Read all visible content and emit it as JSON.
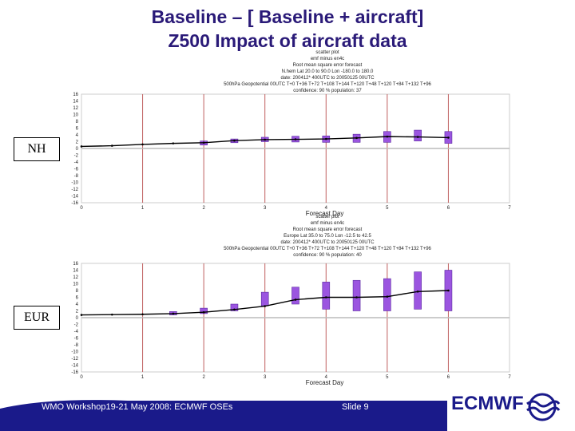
{
  "slide": {
    "title_line1": "Baseline – [ Baseline + aircraft]",
    "title_line2": "Z500 Impact of aircraft data",
    "footer_text": "WMO Workshop19-21 May 2008: ECMWF OSEs",
    "slide_label": "Slide 9",
    "logo_text": "ECMWF"
  },
  "colors": {
    "title": "#2a1a78",
    "box_fill": "#9b55e0",
    "box_stroke": "#5a2aa0",
    "line": "#000000",
    "vgrid": "#c06060",
    "footer_bar": "#1a1a8a"
  },
  "chart_data": [
    {
      "type": "box",
      "region_label": "NH",
      "header_lines": [
        "scatter plot",
        "emf minus en4c",
        "Root mean square error forecast",
        "N.hem Lat 20.0 to 90.0 Lon -180.0 to 180.0",
        "date: 200412* 400UTC to 20050125 00UTC",
        "500hPa Geopotential 00UTC T+0 T+36 T+72 T+108 T+144 T+120 T+48 T+120 T+84 T+132 T+96",
        "confidence: 90 % population: 37"
      ],
      "xlabel": "Forecast Day",
      "x_ticks": [
        0,
        1,
        2,
        3,
        4,
        5,
        6,
        7
      ],
      "y_ticks": [
        16,
        14,
        12,
        10,
        8,
        6,
        4,
        2,
        0,
        -2,
        -4,
        -6,
        -8,
        -10,
        -12,
        -14,
        -16
      ],
      "xlim": [
        0,
        7
      ],
      "ylim": [
        -16,
        16
      ],
      "grid": "vertical lines at integer days",
      "line_x": [
        0,
        0.5,
        1,
        1.5,
        2,
        2.5,
        3,
        3.5,
        4,
        4.5,
        5,
        5.5,
        6
      ],
      "line_y": [
        0.6,
        0.8,
        1.2,
        1.5,
        1.7,
        2.3,
        2.6,
        2.7,
        2.8,
        3.1,
        3.5,
        3.4,
        3.2
      ],
      "boxes": [
        {
          "x": 2,
          "low": 1.0,
          "high": 2.2
        },
        {
          "x": 2.5,
          "low": 1.7,
          "high": 2.8
        },
        {
          "x": 3,
          "low": 2.0,
          "high": 3.3
        },
        {
          "x": 3.5,
          "low": 1.9,
          "high": 3.6
        },
        {
          "x": 4,
          "low": 1.8,
          "high": 3.7
        },
        {
          "x": 4.5,
          "low": 1.8,
          "high": 4.2
        },
        {
          "x": 5,
          "low": 1.8,
          "high": 5.0
        },
        {
          "x": 5.5,
          "low": 2.2,
          "high": 5.4
        },
        {
          "x": 6,
          "low": 1.5,
          "high": 5.0
        }
      ]
    },
    {
      "type": "box",
      "region_label": "EUR",
      "header_lines": [
        "scatter plot",
        "emf minus en4c",
        "Root mean square error forecast",
        "Europe Lat 35.0 to 75.0 Lon -12.5 to 42.5",
        "date: 200412* 400UTC to 20050125 00UTC",
        "500hPa Geopotential 00UTC T+0 T+36 T+72 T+108 T+144 T+120 T+48 T+120 T+84 T+132 T+96",
        "confidence: 90 % population: 40"
      ],
      "xlabel": "Forecast Day",
      "x_ticks": [
        0,
        1,
        2,
        3,
        4,
        5,
        6,
        7
      ],
      "y_ticks": [
        16,
        14,
        12,
        10,
        8,
        6,
        4,
        2,
        0,
        -2,
        -4,
        -6,
        -8,
        -10,
        -12,
        -14,
        -16
      ],
      "xlim": [
        0,
        7
      ],
      "ylim": [
        -16,
        16
      ],
      "grid": "vertical lines at integer days",
      "line_x": [
        0,
        0.5,
        1,
        1.5,
        2,
        2.5,
        3,
        3.5,
        4,
        4.5,
        5,
        5.5,
        6
      ],
      "line_y": [
        0.8,
        0.9,
        1.0,
        1.2,
        1.6,
        2.4,
        3.4,
        5.3,
        6.0,
        6.0,
        6.2,
        7.7,
        8.0
      ],
      "boxes": [
        {
          "x": 1.5,
          "low": 0.8,
          "high": 1.8
        },
        {
          "x": 2,
          "low": 1.2,
          "high": 2.8
        },
        {
          "x": 2.5,
          "low": 2.0,
          "high": 4.0
        },
        {
          "x": 3,
          "low": 3.5,
          "high": 7.5
        },
        {
          "x": 3.5,
          "low": 4.0,
          "high": 9.0
        },
        {
          "x": 4,
          "low": 2.5,
          "high": 10.5
        },
        {
          "x": 4.5,
          "low": 2.0,
          "high": 11.0
        },
        {
          "x": 5,
          "low": 2.0,
          "high": 11.5
        },
        {
          "x": 5.5,
          "low": 2.5,
          "high": 13.5
        },
        {
          "x": 6,
          "low": 2.0,
          "high": 14.0
        }
      ]
    }
  ]
}
